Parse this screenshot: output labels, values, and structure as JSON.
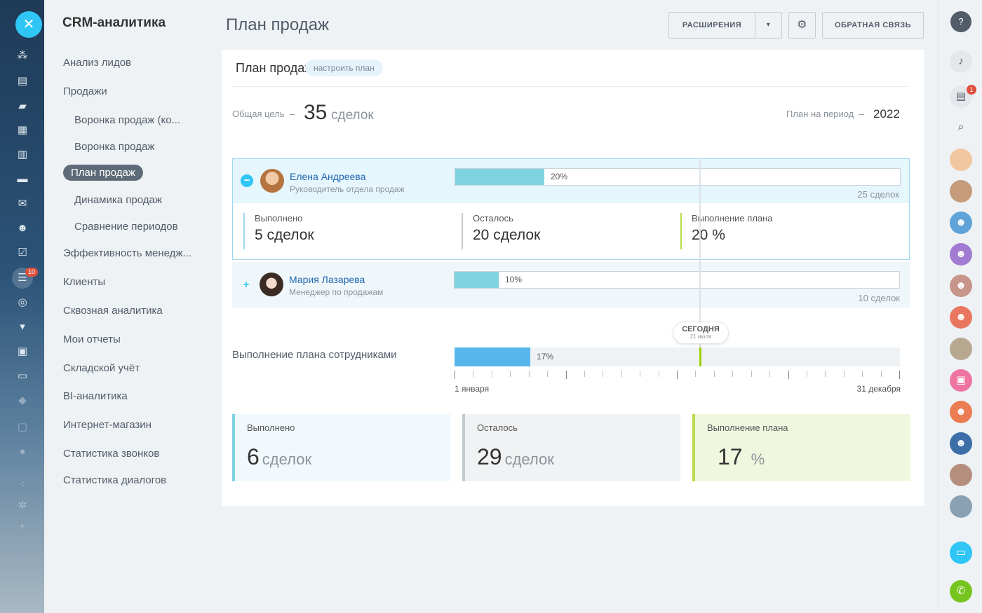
{
  "menu": {
    "title": "CRM-аналитика",
    "items": [
      {
        "label": "Анализ лидов"
      },
      {
        "label": "Продажи"
      },
      {
        "label": "Воронка продаж (ко..."
      },
      {
        "label": "Воронка продаж"
      },
      {
        "label": "План продаж"
      },
      {
        "label": "Динамика продаж"
      },
      {
        "label": "Сравнение периодов"
      },
      {
        "label": "Эффективность менедж..."
      },
      {
        "label": "Клиенты"
      },
      {
        "label": "Сквозная аналитика"
      },
      {
        "label": "Мои отчеты"
      },
      {
        "label": "Складской учёт"
      },
      {
        "label": "BI-аналитика"
      },
      {
        "label": "Интернет-магазин"
      },
      {
        "label": "Статистика звонков"
      },
      {
        "label": "Статистика диалогов"
      }
    ]
  },
  "rail": {
    "badge": "10"
  },
  "header": {
    "title": "План продаж",
    "extensions_label": "РАСШИРЕНИЯ",
    "feedback_label": "ОБРАТНАЯ СВЯЗЬ"
  },
  "card": {
    "title": "План продаж",
    "configure_label": "настроить план",
    "goal_label": "Общая цель",
    "goal_value": "35",
    "goal_unit": "сделок",
    "period_label": "План на период",
    "period_value": "2022",
    "dash": "–"
  },
  "employees": [
    {
      "name": "Елена Андреева",
      "role": "Руководитель отдела продаж",
      "progress_pct": "20%",
      "progress": 0.2,
      "goal": "25 сделок",
      "toggle": "−",
      "stats": [
        {
          "label": "Выполнено",
          "value": "5 сделок"
        },
        {
          "label": "Осталось",
          "value": "20 сделок"
        },
        {
          "label": "Выполнение плана",
          "value": "20 %"
        }
      ]
    },
    {
      "name": "Мария Лазарева",
      "role": "Менеджер по продажам",
      "progress_pct": "10%",
      "progress": 0.1,
      "goal": "10 сделок",
      "toggle": "+"
    }
  ],
  "today": {
    "label": "СЕГОДНЯ",
    "date": "21 июля"
  },
  "total": {
    "label": "Выполнение плана сотрудниками",
    "pct": "17%",
    "progress": 0.17,
    "start_date": "1 января",
    "end_date": "31 декабря"
  },
  "summary": [
    {
      "label": "Выполнено",
      "value": "6",
      "unit": "сделок"
    },
    {
      "label": "Осталось",
      "value": "29",
      "unit": "сделок"
    },
    {
      "label": "Выполнение плана",
      "value": "17",
      "unit": "%"
    }
  ],
  "right_rail": {
    "chat_badge": "1"
  },
  "colors": {
    "accent": "#2fc6f6",
    "bar_employee": "#7fd3e1",
    "bar_total": "#56b6ec",
    "today_marker": "#9dcf00"
  }
}
